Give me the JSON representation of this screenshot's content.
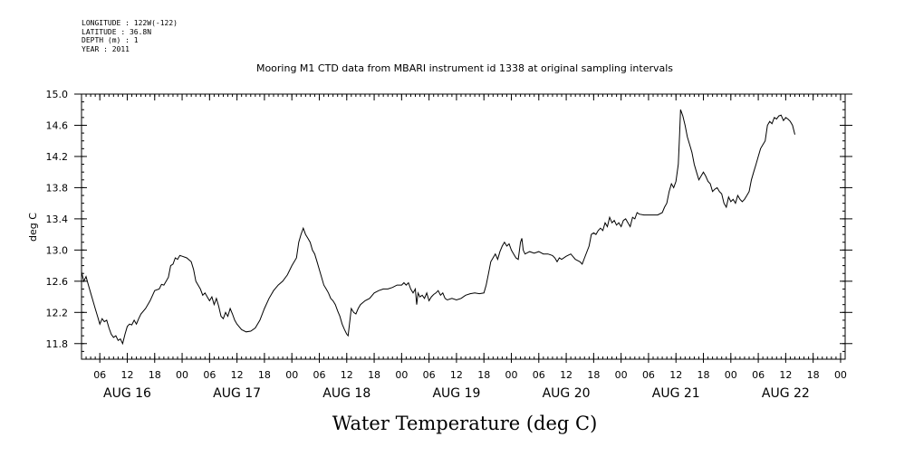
{
  "header": {
    "lines": [
      "LONGITUDE : 122W(-122)",
      "LATITUDE : 36.8N",
      "DEPTH (m) : 1",
      "YEAR : 2011"
    ]
  },
  "chart_data": {
    "type": "line",
    "title": "Mooring M1 CTD data from MBARI instrument id 1338 at original sampling intervals",
    "xlabel": "Water Temperature (deg C)",
    "ylabel": "deg C",
    "ylim": [
      11.6,
      15.0
    ],
    "yticks": [
      11.8,
      12.2,
      12.6,
      13.0,
      13.4,
      13.8,
      14.2,
      14.6,
      15.0
    ],
    "ytick_labels": [
      "11.8",
      "12.2",
      "12.6",
      "13.0",
      "13.4",
      "13.8",
      "14.2",
      "14.6",
      "15.0"
    ],
    "xlim_hours": [
      0,
      167
    ],
    "hour_ticks": [
      {
        "h": 4,
        "label": "06"
      },
      {
        "h": 10,
        "label": "12"
      },
      {
        "h": 16,
        "label": "18"
      },
      {
        "h": 22,
        "label": "00"
      },
      {
        "h": 28,
        "label": "06"
      },
      {
        "h": 34,
        "label": "12"
      },
      {
        "h": 40,
        "label": "18"
      },
      {
        "h": 46,
        "label": "00"
      },
      {
        "h": 52,
        "label": "06"
      },
      {
        "h": 58,
        "label": "12"
      },
      {
        "h": 64,
        "label": "18"
      },
      {
        "h": 70,
        "label": "00"
      },
      {
        "h": 76,
        "label": "06"
      },
      {
        "h": 82,
        "label": "12"
      },
      {
        "h": 88,
        "label": "18"
      },
      {
        "h": 94,
        "label": "00"
      },
      {
        "h": 100,
        "label": "06"
      },
      {
        "h": 106,
        "label": "12"
      },
      {
        "h": 112,
        "label": "18"
      },
      {
        "h": 118,
        "label": "00"
      },
      {
        "h": 124,
        "label": "06"
      },
      {
        "h": 130,
        "label": "12"
      },
      {
        "h": 136,
        "label": "18"
      },
      {
        "h": 142,
        "label": "00"
      },
      {
        "h": 148,
        "label": "06"
      },
      {
        "h": 154,
        "label": "12"
      },
      {
        "h": 160,
        "label": "18"
      },
      {
        "h": 166,
        "label": "00"
      }
    ],
    "day_labels": [
      {
        "h": 10,
        "label": "AUG 16"
      },
      {
        "h": 34,
        "label": "AUG 17"
      },
      {
        "h": 58,
        "label": "AUG 18"
      },
      {
        "h": 82,
        "label": "AUG 19"
      },
      {
        "h": 106,
        "label": "AUG 20"
      },
      {
        "h": 130,
        "label": "AUG 21"
      },
      {
        "h": 154,
        "label": "AUG 22"
      }
    ],
    "grid": false,
    "series": [
      {
        "color": "#000000",
        "points": [
          [
            0,
            12.72
          ],
          [
            0.5,
            12.6
          ],
          [
            1,
            12.66
          ],
          [
            1.5,
            12.55
          ],
          [
            2,
            12.45
          ],
          [
            2.5,
            12.35
          ],
          [
            3,
            12.25
          ],
          [
            3.5,
            12.15
          ],
          [
            4,
            12.05
          ],
          [
            4.5,
            12.12
          ],
          [
            5,
            12.08
          ],
          [
            5.5,
            12.1
          ],
          [
            6,
            12.0
          ],
          [
            6.5,
            11.92
          ],
          [
            7,
            11.88
          ],
          [
            7.5,
            11.9
          ],
          [
            8,
            11.84
          ],
          [
            8.5,
            11.86
          ],
          [
            9,
            11.8
          ],
          [
            9.5,
            11.92
          ],
          [
            10,
            12.02
          ],
          [
            10.5,
            12.05
          ],
          [
            11,
            12.04
          ],
          [
            11.5,
            12.1
          ],
          [
            12,
            12.05
          ],
          [
            12.5,
            12.12
          ],
          [
            13,
            12.18
          ],
          [
            14,
            12.25
          ],
          [
            15,
            12.35
          ],
          [
            16,
            12.48
          ],
          [
            17,
            12.5
          ],
          [
            17.5,
            12.56
          ],
          [
            18,
            12.55
          ],
          [
            19,
            12.65
          ],
          [
            19.5,
            12.8
          ],
          [
            20,
            12.82
          ],
          [
            20.5,
            12.9
          ],
          [
            21,
            12.88
          ],
          [
            21.5,
            12.93
          ],
          [
            22,
            12.92
          ],
          [
            23,
            12.9
          ],
          [
            24,
            12.85
          ],
          [
            24.5,
            12.75
          ],
          [
            25,
            12.6
          ],
          [
            25.5,
            12.55
          ],
          [
            26,
            12.5
          ],
          [
            26.5,
            12.42
          ],
          [
            27,
            12.45
          ],
          [
            27.5,
            12.4
          ],
          [
            28,
            12.35
          ],
          [
            28.5,
            12.4
          ],
          [
            29,
            12.3
          ],
          [
            29.5,
            12.38
          ],
          [
            30,
            12.28
          ],
          [
            30.5,
            12.15
          ],
          [
            31,
            12.12
          ],
          [
            31.5,
            12.2
          ],
          [
            32,
            12.15
          ],
          [
            32.5,
            12.25
          ],
          [
            33,
            12.18
          ],
          [
            33.5,
            12.1
          ],
          [
            34,
            12.05
          ],
          [
            35,
            11.98
          ],
          [
            36,
            11.95
          ],
          [
            37,
            11.96
          ],
          [
            38,
            12.0
          ],
          [
            39,
            12.1
          ],
          [
            40,
            12.25
          ],
          [
            41,
            12.38
          ],
          [
            42,
            12.48
          ],
          [
            43,
            12.55
          ],
          [
            44,
            12.6
          ],
          [
            45,
            12.68
          ],
          [
            46,
            12.8
          ],
          [
            47,
            12.9
          ],
          [
            47.5,
            13.1
          ],
          [
            48,
            13.2
          ],
          [
            48.5,
            13.28
          ],
          [
            49,
            13.2
          ],
          [
            49.5,
            13.15
          ],
          [
            50,
            13.1
          ],
          [
            50.5,
            13.0
          ],
          [
            51,
            12.95
          ],
          [
            51.5,
            12.85
          ],
          [
            52,
            12.75
          ],
          [
            52.5,
            12.65
          ],
          [
            53,
            12.55
          ],
          [
            53.5,
            12.5
          ],
          [
            54,
            12.45
          ],
          [
            54.5,
            12.38
          ],
          [
            55,
            12.35
          ],
          [
            55.5,
            12.3
          ],
          [
            56,
            12.22
          ],
          [
            56.5,
            12.15
          ],
          [
            57,
            12.05
          ],
          [
            57.5,
            11.98
          ],
          [
            58,
            11.92
          ],
          [
            58.3,
            11.9
          ],
          [
            58.6,
            12.05
          ],
          [
            59,
            12.25
          ],
          [
            59.5,
            12.2
          ],
          [
            60,
            12.18
          ],
          [
            60.5,
            12.25
          ],
          [
            61,
            12.3
          ],
          [
            62,
            12.35
          ],
          [
            63,
            12.38
          ],
          [
            64,
            12.45
          ],
          [
            65,
            12.48
          ],
          [
            66,
            12.5
          ],
          [
            67,
            12.5
          ],
          [
            68,
            12.52
          ],
          [
            69,
            12.55
          ],
          [
            70,
            12.55
          ],
          [
            70.5,
            12.58
          ],
          [
            71,
            12.55
          ],
          [
            71.5,
            12.58
          ],
          [
            72,
            12.5
          ],
          [
            72.5,
            12.45
          ],
          [
            73,
            12.5
          ],
          [
            73.3,
            12.3
          ],
          [
            73.6,
            12.45
          ],
          [
            74,
            12.4
          ],
          [
            74.5,
            12.42
          ],
          [
            75,
            12.38
          ],
          [
            75.5,
            12.45
          ],
          [
            76,
            12.35
          ],
          [
            76.5,
            12.4
          ],
          [
            77,
            12.43
          ],
          [
            77.5,
            12.45
          ],
          [
            78,
            12.48
          ],
          [
            78.5,
            12.42
          ],
          [
            79,
            12.45
          ],
          [
            79.5,
            12.38
          ],
          [
            80,
            12.36
          ],
          [
            81,
            12.38
          ],
          [
            82,
            12.36
          ],
          [
            83,
            12.38
          ],
          [
            84,
            12.42
          ],
          [
            85,
            12.44
          ],
          [
            86,
            12.45
          ],
          [
            87,
            12.44
          ],
          [
            88,
            12.45
          ],
          [
            88.5,
            12.55
          ],
          [
            89,
            12.7
          ],
          [
            89.5,
            12.85
          ],
          [
            90,
            12.9
          ],
          [
            90.5,
            12.95
          ],
          [
            91,
            12.88
          ],
          [
            91.5,
            12.98
          ],
          [
            92,
            13.05
          ],
          [
            92.5,
            13.1
          ],
          [
            93,
            13.05
          ],
          [
            93.5,
            13.08
          ],
          [
            94,
            13.0
          ],
          [
            94.5,
            12.95
          ],
          [
            95,
            12.9
          ],
          [
            95.5,
            12.88
          ],
          [
            96,
            13.1
          ],
          [
            96.3,
            13.15
          ],
          [
            96.6,
            13.0
          ],
          [
            97,
            12.95
          ],
          [
            98,
            12.98
          ],
          [
            99,
            12.96
          ],
          [
            100,
            12.98
          ],
          [
            101,
            12.95
          ],
          [
            102,
            12.95
          ],
          [
            103,
            12.93
          ],
          [
            103.5,
            12.9
          ],
          [
            104,
            12.85
          ],
          [
            104.5,
            12.9
          ],
          [
            105,
            12.88
          ],
          [
            106,
            12.92
          ],
          [
            107,
            12.95
          ],
          [
            108,
            12.88
          ],
          [
            109,
            12.85
          ],
          [
            109.5,
            12.82
          ],
          [
            110,
            12.9
          ],
          [
            111,
            13.05
          ],
          [
            111.5,
            13.2
          ],
          [
            112,
            13.22
          ],
          [
            112.5,
            13.2
          ],
          [
            113,
            13.25
          ],
          [
            113.5,
            13.28
          ],
          [
            114,
            13.25
          ],
          [
            114.5,
            13.35
          ],
          [
            115,
            13.3
          ],
          [
            115.5,
            13.42
          ],
          [
            116,
            13.35
          ],
          [
            116.5,
            13.38
          ],
          [
            117,
            13.32
          ],
          [
            117.5,
            13.35
          ],
          [
            118,
            13.3
          ],
          [
            118.5,
            13.38
          ],
          [
            119,
            13.4
          ],
          [
            119.5,
            13.35
          ],
          [
            120,
            13.3
          ],
          [
            120.5,
            13.42
          ],
          [
            121,
            13.4
          ],
          [
            121.5,
            13.48
          ],
          [
            122,
            13.46
          ],
          [
            123,
            13.45
          ],
          [
            124,
            13.45
          ],
          [
            125,
            13.45
          ],
          [
            126,
            13.45
          ],
          [
            127,
            13.48
          ],
          [
            127.5,
            13.55
          ],
          [
            128,
            13.6
          ],
          [
            128.5,
            13.75
          ],
          [
            129,
            13.85
          ],
          [
            129.5,
            13.8
          ],
          [
            130,
            13.88
          ],
          [
            130.5,
            14.1
          ],
          [
            130.8,
            14.5
          ],
          [
            131,
            14.8
          ],
          [
            131.5,
            14.72
          ],
          [
            132,
            14.6
          ],
          [
            132.5,
            14.45
          ],
          [
            133,
            14.35
          ],
          [
            133.5,
            14.25
          ],
          [
            134,
            14.1
          ],
          [
            134.5,
            14.0
          ],
          [
            135,
            13.9
          ],
          [
            135.5,
            13.95
          ],
          [
            136,
            14.0
          ],
          [
            136.5,
            13.95
          ],
          [
            137,
            13.88
          ],
          [
            137.5,
            13.85
          ],
          [
            138,
            13.75
          ],
          [
            138.5,
            13.78
          ],
          [
            139,
            13.8
          ],
          [
            139.5,
            13.75
          ],
          [
            140,
            13.72
          ],
          [
            140.5,
            13.6
          ],
          [
            141,
            13.55
          ],
          [
            141.5,
            13.68
          ],
          [
            142,
            13.62
          ],
          [
            142.5,
            13.65
          ],
          [
            143,
            13.6
          ],
          [
            143.5,
            13.7
          ],
          [
            144,
            13.65
          ],
          [
            144.5,
            13.62
          ],
          [
            145,
            13.65
          ],
          [
            145.5,
            13.7
          ],
          [
            146,
            13.75
          ],
          [
            146.5,
            13.9
          ],
          [
            147,
            14.0
          ],
          [
            147.5,
            14.1
          ],
          [
            148,
            14.2
          ],
          [
            148.5,
            14.3
          ],
          [
            149,
            14.35
          ],
          [
            149.5,
            14.4
          ],
          [
            150,
            14.6
          ],
          [
            150.5,
            14.65
          ],
          [
            151,
            14.62
          ],
          [
            151.5,
            14.7
          ],
          [
            152,
            14.68
          ],
          [
            152.5,
            14.72
          ],
          [
            153,
            14.73
          ],
          [
            153.5,
            14.66
          ],
          [
            154,
            14.7
          ],
          [
            154.5,
            14.68
          ],
          [
            155,
            14.65
          ],
          [
            155.5,
            14.6
          ],
          [
            156,
            14.48
          ]
        ]
      }
    ]
  }
}
